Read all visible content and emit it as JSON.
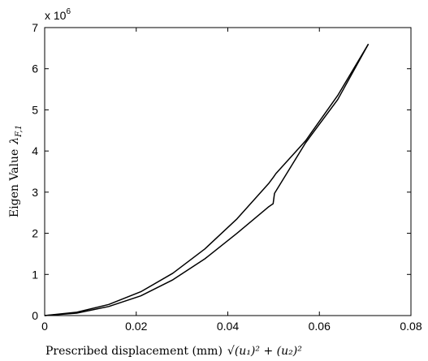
{
  "chart_data": {
    "type": "line",
    "title": "",
    "xlabel": "Prescribed displacement (mm)",
    "xlabel_math": "√(u₁)² + (u₂)²",
    "ylabel": "Eigen Value λF,1",
    "ylabel_text": "Eigen Value",
    "ylabel_symbol": "λ",
    "ylabel_subscript": "F,1",
    "y_multiplier": "x 10",
    "y_multiplier_exponent": "6",
    "xlim": [
      0,
      0.08
    ],
    "ylim": [
      0,
      7
    ],
    "x_ticks": [
      0,
      0.02,
      0.04,
      0.06,
      0.08
    ],
    "x_tick_labels": [
      "0",
      "0.02",
      "0.04",
      "0.06",
      "0.08"
    ],
    "y_ticks": [
      0,
      1,
      2,
      3,
      4,
      5,
      6,
      7
    ],
    "y_tick_labels": [
      "0",
      "1",
      "2",
      "3",
      "4",
      "5",
      "6",
      "7"
    ],
    "grid": false,
    "line_color": "#000000",
    "series": [
      {
        "x": [
          0,
          0.007,
          0.014,
          0.021,
          0.028,
          0.035,
          0.042,
          0.049,
          0.05,
          0.0505,
          0.057,
          0.064,
          0.0707
        ],
        "y": [
          0,
          0.08,
          0.27,
          0.58,
          1.03,
          1.62,
          2.35,
          3.22,
          3.37,
          3.45,
          4.25,
          5.35,
          6.6
        ]
      },
      {
        "x": [
          0,
          0.007,
          0.014,
          0.021,
          0.028,
          0.035,
          0.042,
          0.049,
          0.0499,
          0.0502,
          0.057,
          0.064,
          0.0707
        ],
        "y": [
          0,
          0.06,
          0.22,
          0.48,
          0.87,
          1.38,
          2.0,
          2.65,
          2.72,
          2.97,
          4.2,
          5.25,
          6.6
        ]
      }
    ]
  }
}
